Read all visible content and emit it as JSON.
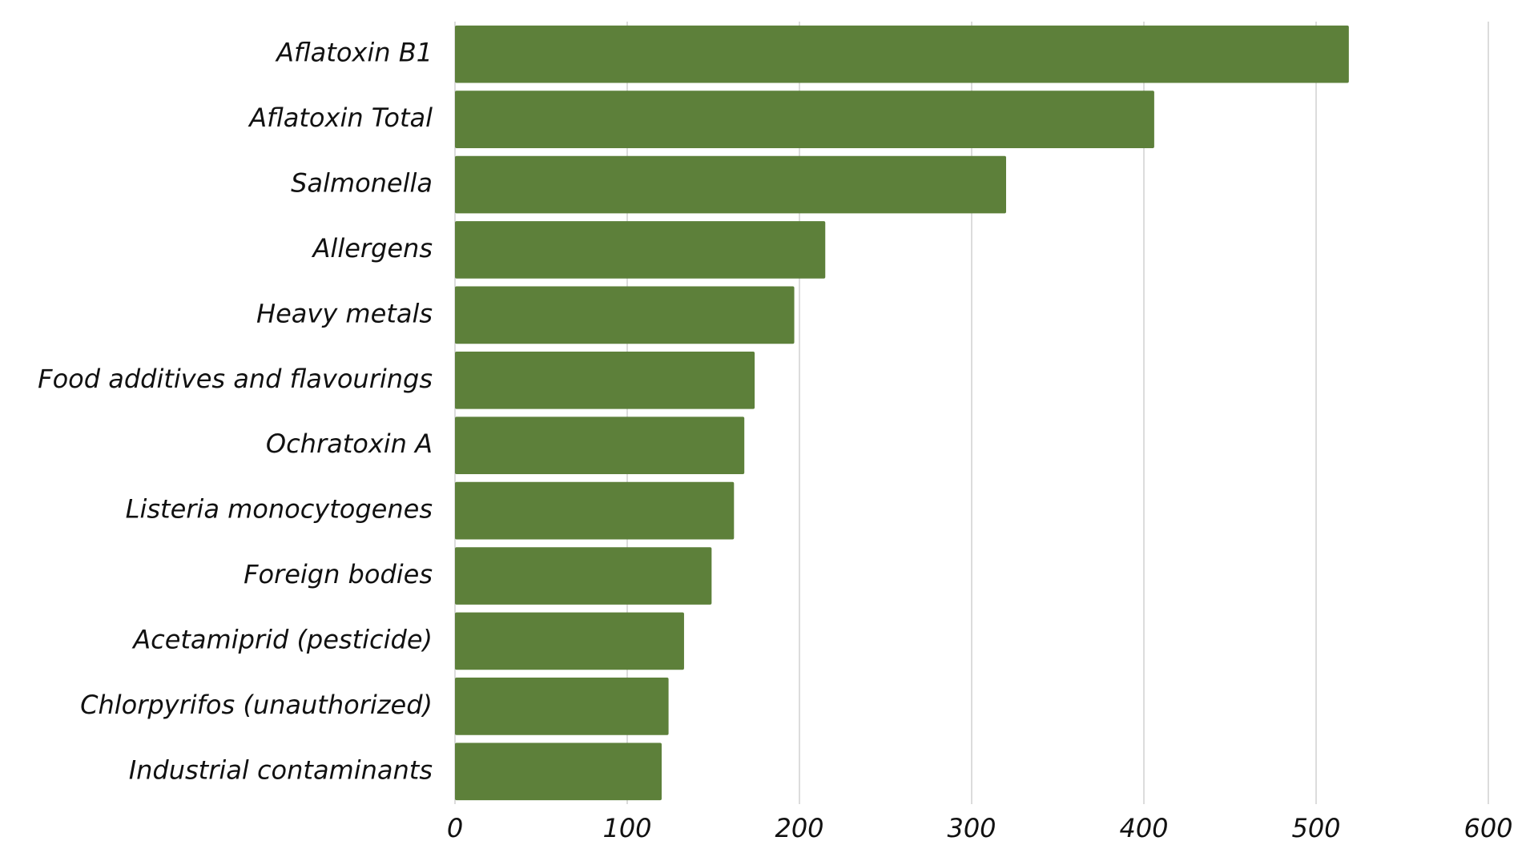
{
  "chart_data": {
    "type": "bar",
    "orientation": "horizontal",
    "categories": [
      "Aflatoxin B1",
      "Aflatoxin Total",
      "Salmonella",
      "Allergens",
      "Heavy metals",
      "Food additives and flavourings",
      "Ochratoxin A",
      "Listeria monocytogenes",
      "Foreign bodies",
      "Acetamiprid (pesticide)",
      "Chlorpyrifos (unauthorized)",
      "Industrial contaminants"
    ],
    "values": [
      519,
      406,
      320,
      215,
      197,
      174,
      168,
      162,
      149,
      133,
      124,
      120
    ],
    "color": "#5d803a",
    "xlim": [
      0,
      600
    ],
    "xticks": [
      0,
      100,
      200,
      300,
      400,
      500,
      600
    ],
    "grid": true
  }
}
